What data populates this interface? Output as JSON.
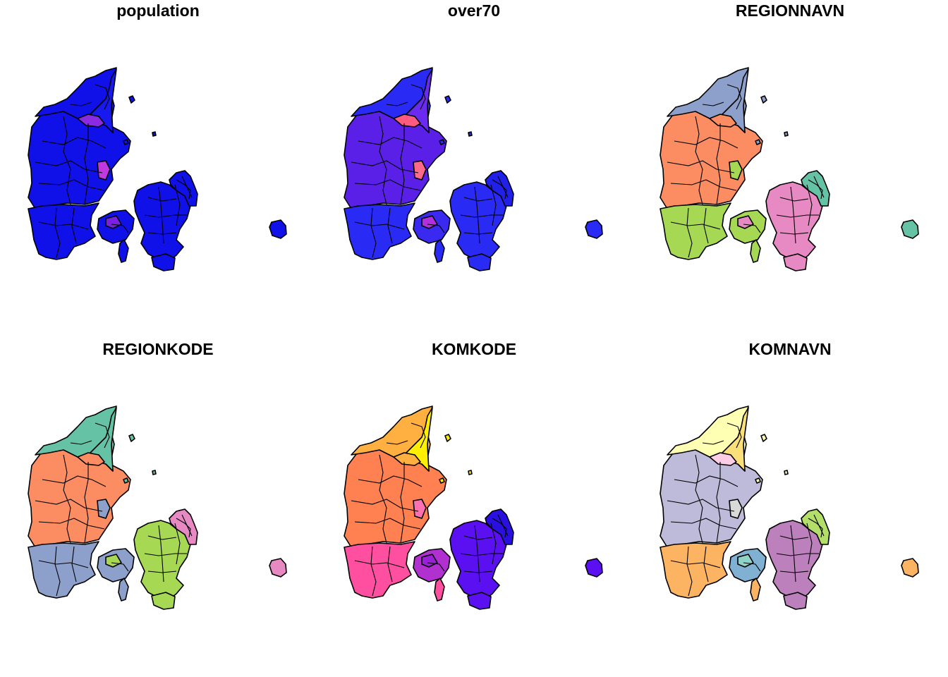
{
  "panels": [
    {
      "title": "population",
      "colors": {
        "north": "#1010E8",
        "vendsyssel": "#1818F0",
        "central": "#1010E8",
        "south": "#1010E8",
        "funen": "#1010E8",
        "zealand": "#1010E8",
        "copenhagen": "#1010E8",
        "bornholm": "#1010E8",
        "small": "#1010E8",
        "accent1": "#8A2BE2",
        "accent2": "#C03AE0",
        "accent3": "#7A20E0"
      }
    },
    {
      "title": "over70",
      "colors": {
        "north": "#2A2AF5",
        "vendsyssel": "#6A2AF0",
        "central": "#5A20E8",
        "south": "#2A2AF5",
        "funen": "#3A2AF0",
        "zealand": "#2A2AF5",
        "copenhagen": "#2020E8",
        "bornholm": "#2A2AF5",
        "small": "#2A2AF5",
        "accent1": "#FF5A80",
        "accent2": "#FF6A8A",
        "accent3": "#B030E0"
      }
    },
    {
      "title": "REGIONNAVN",
      "colors": {
        "north": "#8DA0CB",
        "vendsyssel": "#8DA0CB",
        "central": "#FC8D62",
        "south": "#A6D854",
        "funen": "#A6D854",
        "zealand": "#E78AC3",
        "copenhagen": "#66C2A5",
        "bornholm": "#66C2A5",
        "small": "#8DA0CB",
        "accent1": "#FC8D62",
        "accent2": "#A6D854",
        "accent3": "#E78AC3"
      }
    },
    {
      "title": "REGIONKODE",
      "colors": {
        "north": "#66C2A5",
        "vendsyssel": "#66C2A5",
        "central": "#FC8D62",
        "south": "#8DA0CB",
        "funen": "#8DA0CB",
        "zealand": "#A6D854",
        "copenhagen": "#E78AC3",
        "bornholm": "#E78AC3",
        "small": "#66C2A5",
        "accent1": "#FC8D62",
        "accent2": "#8DA0CB",
        "accent3": "#A6D854"
      }
    },
    {
      "title": "KOMKODE",
      "colors": {
        "north": "#FFB040",
        "vendsyssel": "#FFF000",
        "central": "#FF8050",
        "south": "#FF4FA0",
        "funen": "#B030D0",
        "zealand": "#5A10F0",
        "copenhagen": "#2A10E0",
        "bornholm": "#5A10F0",
        "small": "#FFF000",
        "accent1": "#FFB040",
        "accent2": "#FF70B0",
        "accent3": "#9A20D8"
      }
    },
    {
      "title": "KOMNAVN",
      "colors": {
        "north": "#FFFFB3",
        "vendsyssel": "#FBE07A",
        "central": "#BEBADA",
        "south": "#FDB462",
        "funen": "#80B1D3",
        "zealand": "#BC80BD",
        "copenhagen": "#B3DE69",
        "bornholm": "#FDB462",
        "small": "#FFFFB3",
        "accent1": "#FCCDE5",
        "accent2": "#D9D9D9",
        "accent3": "#8DD3C7"
      }
    }
  ]
}
